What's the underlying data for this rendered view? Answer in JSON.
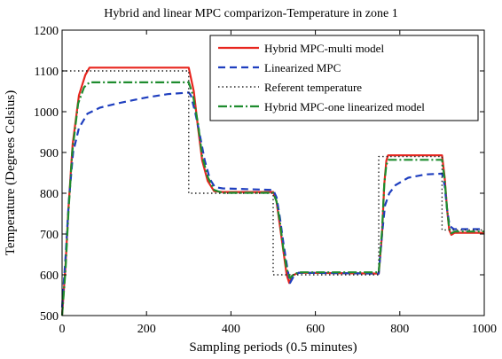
{
  "chart_data": {
    "type": "line",
    "title": "Hybrid and linear MPC comparizon-Temperature in zone 1",
    "xlabel": "Sampling periods (0.5 minutes)",
    "ylabel": "Temperature (Degrees Celsius)",
    "xlim": [
      0,
      1000
    ],
    "ylim": [
      500,
      1200
    ],
    "xticks": [
      0,
      200,
      400,
      600,
      800,
      1000
    ],
    "yticks": [
      500,
      600,
      700,
      800,
      900,
      1000,
      1100,
      1200
    ],
    "grid": false,
    "legend_position": "top-right",
    "series": [
      {
        "name": "Hybrid MPC-multi model",
        "color": "#e8261f",
        "dash": "solid",
        "points": [
          [
            0,
            500
          ],
          [
            8,
            620
          ],
          [
            15,
            760
          ],
          [
            25,
            920
          ],
          [
            40,
            1040
          ],
          [
            55,
            1090
          ],
          [
            65,
            1108
          ],
          [
            80,
            1108
          ],
          [
            300,
            1108
          ],
          [
            312,
            1050
          ],
          [
            322,
            960
          ],
          [
            332,
            880
          ],
          [
            345,
            830
          ],
          [
            360,
            805
          ],
          [
            380,
            803
          ],
          [
            500,
            803
          ],
          [
            508,
            780
          ],
          [
            516,
            720
          ],
          [
            524,
            660
          ],
          [
            532,
            600
          ],
          [
            538,
            580
          ],
          [
            545,
            598
          ],
          [
            560,
            605
          ],
          [
            750,
            603
          ],
          [
            758,
            700
          ],
          [
            763,
            820
          ],
          [
            768,
            880
          ],
          [
            772,
            893
          ],
          [
            900,
            893
          ],
          [
            906,
            840
          ],
          [
            912,
            760
          ],
          [
            917,
            710
          ],
          [
            922,
            698
          ],
          [
            930,
            703
          ],
          [
            1000,
            703
          ]
        ]
      },
      {
        "name": "Linearized MPC",
        "color": "#1f3fbf",
        "dash": "8,5",
        "points": [
          [
            0,
            520
          ],
          [
            8,
            640
          ],
          [
            16,
            780
          ],
          [
            26,
            900
          ],
          [
            40,
            960
          ],
          [
            60,
            995
          ],
          [
            90,
            1010
          ],
          [
            130,
            1020
          ],
          [
            200,
            1035
          ],
          [
            250,
            1043
          ],
          [
            300,
            1047
          ],
          [
            305,
            1040
          ],
          [
            315,
            1000
          ],
          [
            325,
            950
          ],
          [
            338,
            880
          ],
          [
            350,
            835
          ],
          [
            362,
            815
          ],
          [
            380,
            812
          ],
          [
            500,
            808
          ],
          [
            508,
            790
          ],
          [
            516,
            740
          ],
          [
            524,
            680
          ],
          [
            533,
            620
          ],
          [
            540,
            580
          ],
          [
            548,
            595
          ],
          [
            560,
            605
          ],
          [
            750,
            603
          ],
          [
            758,
            700
          ],
          [
            765,
            770
          ],
          [
            775,
            800
          ],
          [
            790,
            820
          ],
          [
            820,
            838
          ],
          [
            860,
            846
          ],
          [
            900,
            848
          ],
          [
            906,
            820
          ],
          [
            912,
            760
          ],
          [
            918,
            720
          ],
          [
            928,
            712
          ],
          [
            1000,
            712
          ]
        ]
      },
      {
        "name": "Referent temperature",
        "color": "#222222",
        "dash": "1.5,3",
        "points": [
          [
            0,
            1100
          ],
          [
            300,
            1100
          ],
          [
            300,
            800
          ],
          [
            500,
            800
          ],
          [
            500,
            600
          ],
          [
            750,
            600
          ],
          [
            750,
            890
          ],
          [
            900,
            890
          ],
          [
            900,
            710
          ],
          [
            1000,
            710
          ]
        ]
      },
      {
        "name": "Hybrid MPC-one linearized model",
        "color": "#1e8c2e",
        "dash": "10,3,2,3",
        "points": [
          [
            0,
            500
          ],
          [
            8,
            610
          ],
          [
            15,
            750
          ],
          [
            24,
            900
          ],
          [
            38,
            1020
          ],
          [
            52,
            1060
          ],
          [
            65,
            1072
          ],
          [
            80,
            1072
          ],
          [
            300,
            1072
          ],
          [
            310,
            1040
          ],
          [
            322,
            970
          ],
          [
            332,
            890
          ],
          [
            345,
            840
          ],
          [
            360,
            808
          ],
          [
            380,
            801
          ],
          [
            500,
            801
          ],
          [
            508,
            780
          ],
          [
            516,
            730
          ],
          [
            524,
            665
          ],
          [
            532,
            615
          ],
          [
            540,
            592
          ],
          [
            548,
            600
          ],
          [
            560,
            606
          ],
          [
            750,
            606
          ],
          [
            758,
            710
          ],
          [
            763,
            820
          ],
          [
            768,
            870
          ],
          [
            773,
            882
          ],
          [
            900,
            882
          ],
          [
            906,
            835
          ],
          [
            912,
            760
          ],
          [
            917,
            715
          ],
          [
            922,
            702
          ],
          [
            930,
            706
          ],
          [
            1000,
            706
          ]
        ]
      }
    ]
  }
}
